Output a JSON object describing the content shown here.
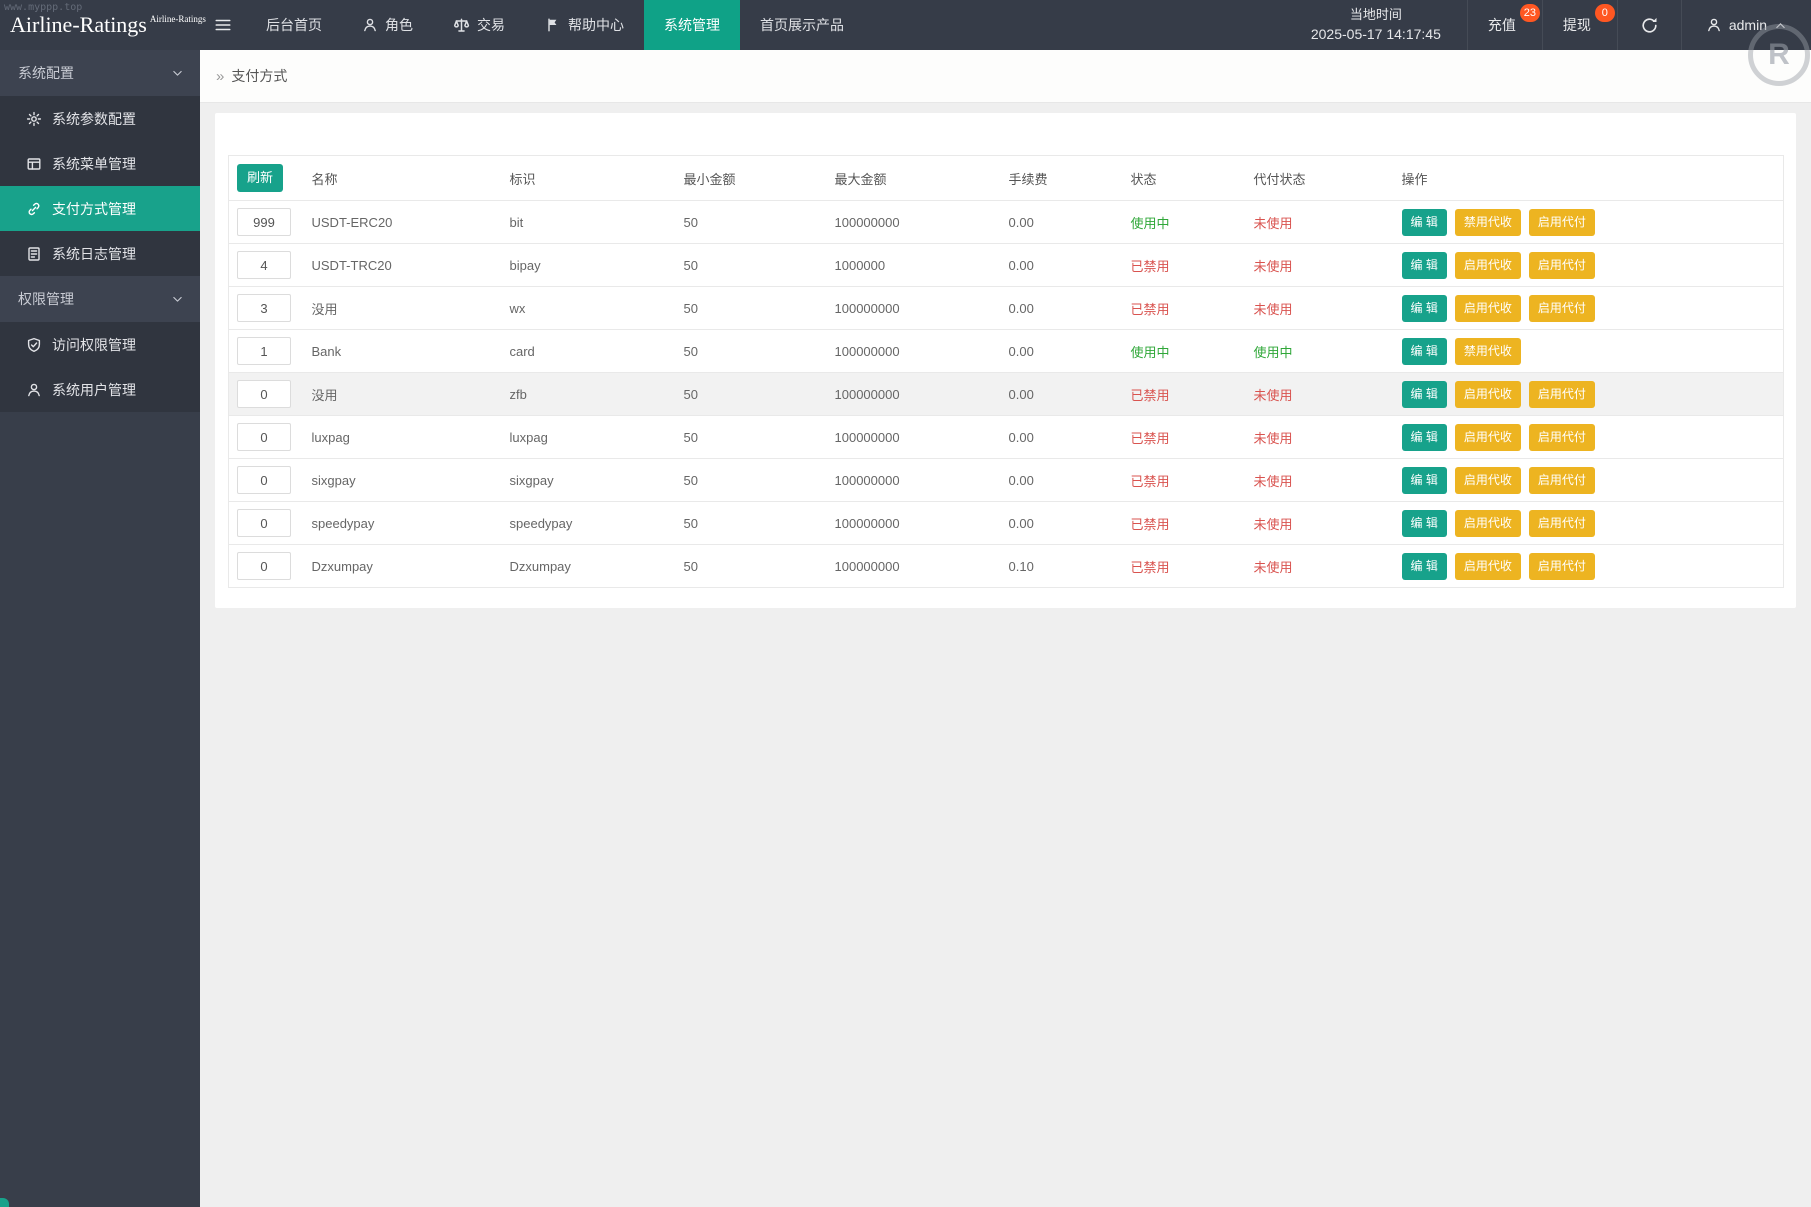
{
  "page": {
    "watermark_url": "www.myppp.top",
    "watermark_letter": "R",
    "accent_color": "#17a28b",
    "warning_color": "#edb421",
    "badge_color": "#ff5722"
  },
  "navbar": {
    "brand": "Airline-Ratings",
    "brand_small": "Airline-Ratings",
    "menu": [
      {
        "key": "dashboard",
        "label": "后台首页",
        "icon": null,
        "active": false
      },
      {
        "key": "roles",
        "label": "角色",
        "icon": "user-icon",
        "active": false
      },
      {
        "key": "trade",
        "label": "交易",
        "icon": "scales-icon",
        "active": false
      },
      {
        "key": "help-center",
        "label": "帮助中心",
        "icon": "flag-icon",
        "active": false
      },
      {
        "key": "system-mgmt",
        "label": "系统管理",
        "icon": null,
        "active": true
      },
      {
        "key": "home-products",
        "label": "首页展示产品",
        "icon": null,
        "active": false
      }
    ],
    "local_time_label": "当地时间",
    "local_time_value": "2025-05-17 14:17:45",
    "recharge_label": "充值",
    "recharge_badge": "23",
    "withdraw_label": "提现",
    "withdraw_badge": "0",
    "username": "admin"
  },
  "sidebar": {
    "sections": [
      {
        "label": "系统配置",
        "items": [
          {
            "key": "params-config",
            "label": "系统参数配置",
            "icon": "gear-icon",
            "active": false
          },
          {
            "key": "menu-mgmt",
            "label": "系统菜单管理",
            "icon": "window-icon",
            "active": false
          },
          {
            "key": "payment-methods",
            "label": "支付方式管理",
            "icon": "link-icon",
            "active": true
          },
          {
            "key": "system-log",
            "label": "系统日志管理",
            "icon": "log-icon",
            "active": false
          }
        ]
      },
      {
        "label": "权限管理",
        "items": [
          {
            "key": "access-perm",
            "label": "访问权限管理",
            "icon": "shield-check-icon",
            "active": false
          },
          {
            "key": "system-users",
            "label": "系统用户管理",
            "icon": "user-icon",
            "active": false
          }
        ]
      }
    ]
  },
  "breadcrumb": {
    "arrow": "»",
    "label": "支付方式"
  },
  "table": {
    "refresh_label": "刷新",
    "headers": [
      "名称",
      "标识",
      "最小金额",
      "最大金额",
      "手续费",
      "状态",
      "代付状态",
      "操作"
    ],
    "status_colors": {
      "active": "#2fa738",
      "inactive": "#d9534f"
    },
    "active_status_text": "使用中",
    "rows": [
      {
        "sort": "999",
        "name": "USDT-ERC20",
        "code": "bit",
        "min": "50",
        "max": "100000000",
        "fee": "0.00",
        "status": "使用中",
        "pay_status": "未使用",
        "highlighted": false,
        "ops": [
          {
            "label": "编 辑",
            "style": "primary"
          },
          {
            "label": "禁用代收",
            "style": "warning"
          },
          {
            "label": "启用代付",
            "style": "warning"
          }
        ]
      },
      {
        "sort": "4",
        "name": "USDT-TRC20",
        "code": "bipay",
        "min": "50",
        "max": "1000000",
        "fee": "0.00",
        "status": "已禁用",
        "pay_status": "未使用",
        "highlighted": false,
        "ops": [
          {
            "label": "编 辑",
            "style": "primary"
          },
          {
            "label": "启用代收",
            "style": "warning"
          },
          {
            "label": "启用代付",
            "style": "warning"
          }
        ]
      },
      {
        "sort": "3",
        "name": "没用",
        "code": "wx",
        "min": "50",
        "max": "100000000",
        "fee": "0.00",
        "status": "已禁用",
        "pay_status": "未使用",
        "highlighted": false,
        "ops": [
          {
            "label": "编 辑",
            "style": "primary"
          },
          {
            "label": "启用代收",
            "style": "warning"
          },
          {
            "label": "启用代付",
            "style": "warning"
          }
        ]
      },
      {
        "sort": "1",
        "name": "Bank",
        "code": "card",
        "min": "50",
        "max": "100000000",
        "fee": "0.00",
        "status": "使用中",
        "pay_status": "使用中",
        "highlighted": false,
        "ops": [
          {
            "label": "编 辑",
            "style": "primary"
          },
          {
            "label": "禁用代收",
            "style": "warning"
          }
        ]
      },
      {
        "sort": "0",
        "name": "没用",
        "code": "zfb",
        "min": "50",
        "max": "100000000",
        "fee": "0.00",
        "status": "已禁用",
        "pay_status": "未使用",
        "highlighted": true,
        "ops": [
          {
            "label": "编 辑",
            "style": "primary"
          },
          {
            "label": "启用代收",
            "style": "warning"
          },
          {
            "label": "启用代付",
            "style": "warning"
          }
        ]
      },
      {
        "sort": "0",
        "name": "luxpag",
        "code": "luxpag",
        "min": "50",
        "max": "100000000",
        "fee": "0.00",
        "status": "已禁用",
        "pay_status": "未使用",
        "highlighted": false,
        "ops": [
          {
            "label": "编 辑",
            "style": "primary"
          },
          {
            "label": "启用代收",
            "style": "warning"
          },
          {
            "label": "启用代付",
            "style": "warning"
          }
        ]
      },
      {
        "sort": "0",
        "name": "sixgpay",
        "code": "sixgpay",
        "min": "50",
        "max": "100000000",
        "fee": "0.00",
        "status": "已禁用",
        "pay_status": "未使用",
        "highlighted": false,
        "ops": [
          {
            "label": "编 辑",
            "style": "primary"
          },
          {
            "label": "启用代收",
            "style": "warning"
          },
          {
            "label": "启用代付",
            "style": "warning"
          }
        ]
      },
      {
        "sort": "0",
        "name": "speedypay",
        "code": "speedypay",
        "min": "50",
        "max": "100000000",
        "fee": "0.00",
        "status": "已禁用",
        "pay_status": "未使用",
        "highlighted": false,
        "ops": [
          {
            "label": "编 辑",
            "style": "primary"
          },
          {
            "label": "启用代收",
            "style": "warning"
          },
          {
            "label": "启用代付",
            "style": "warning"
          }
        ]
      },
      {
        "sort": "0",
        "name": "Dzxumpay",
        "code": "Dzxumpay",
        "min": "50",
        "max": "100000000",
        "fee": "0.10",
        "status": "已禁用",
        "pay_status": "未使用",
        "highlighted": false,
        "ops": [
          {
            "label": "编 辑",
            "style": "primary"
          },
          {
            "label": "启用代收",
            "style": "warning"
          },
          {
            "label": "启用代付",
            "style": "warning"
          }
        ]
      }
    ]
  }
}
